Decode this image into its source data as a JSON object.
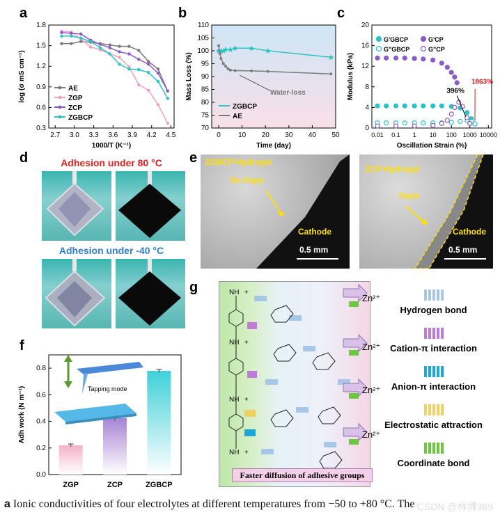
{
  "panels": {
    "a": "a",
    "b": "b",
    "c": "c",
    "d": "d",
    "e": "e",
    "f": "f",
    "g": "g"
  },
  "chart_data": [
    {
      "type": "line",
      "panel": "a",
      "xlabel": "1000/T (K⁻¹)",
      "ylabel": "log (σ mS cm⁻¹)",
      "xlim": [
        2.6,
        4.55
      ],
      "ylim": [
        0.3,
        1.8
      ],
      "xticks": [
        "2.7",
        "3.0",
        "3.3",
        "3.6",
        "3.9",
        "4.2",
        "4.5"
      ],
      "yticks": [
        "0.3",
        "0.6",
        "0.9",
        "1.2",
        "1.5",
        "1.8"
      ],
      "series": [
        {
          "name": "AE",
          "color": "#7a7a7a",
          "x": [
            2.8,
            2.95,
            3.1,
            3.25,
            3.4,
            3.55,
            3.7,
            3.85,
            4.0,
            4.15,
            4.3,
            4.45
          ],
          "y": [
            1.53,
            1.53,
            1.56,
            1.55,
            1.53,
            1.51,
            1.49,
            1.49,
            1.43,
            1.27,
            1.16,
            0.84
          ]
        },
        {
          "name": "ZGP",
          "color": "#f2a0b8",
          "x": [
            2.8,
            2.95,
            3.1,
            3.25,
            3.4,
            3.55,
            3.7,
            3.85,
            4.0,
            4.15,
            4.3,
            4.45
          ],
          "y": [
            1.71,
            1.7,
            1.6,
            1.48,
            1.44,
            1.38,
            1.33,
            1.19,
            0.93,
            0.85,
            0.64,
            0.37
          ]
        },
        {
          "name": "ZCP",
          "color": "#8a5cc7",
          "x": [
            2.8,
            2.95,
            3.1,
            3.25,
            3.4,
            3.55,
            3.7,
            3.85,
            4.0,
            4.15,
            4.3,
            4.45
          ],
          "y": [
            1.69,
            1.68,
            1.67,
            1.58,
            1.52,
            1.47,
            1.41,
            1.38,
            1.3,
            1.23,
            1.1,
            0.84
          ]
        },
        {
          "name": "ZGBCP",
          "color": "#2bc4c4",
          "x": [
            2.8,
            2.95,
            3.1,
            3.25,
            3.4,
            3.55,
            3.7,
            3.85,
            4.0,
            4.15,
            4.3,
            4.45
          ],
          "y": [
            1.64,
            1.64,
            1.61,
            1.56,
            1.47,
            1.38,
            1.23,
            1.16,
            1.15,
            1.11,
            0.98,
            0.73
          ]
        }
      ]
    },
    {
      "type": "line",
      "panel": "b",
      "xlabel": "Time (day)",
      "ylabel": "Mass Loss (%)",
      "xlim": [
        -3,
        50
      ],
      "ylim": [
        70,
        110
      ],
      "xticks": [
        "0",
        "10",
        "20",
        "30",
        "40",
        "50"
      ],
      "yticks": [
        "70",
        "75",
        "80",
        "85",
        "90",
        "95",
        "100",
        "105",
        "110"
      ],
      "annotation": "Water-loss",
      "series": [
        {
          "name": "ZGBCP",
          "color": "#2bc4c4",
          "x": [
            0,
            1,
            2,
            3,
            5,
            7,
            14,
            21,
            48
          ],
          "y": [
            100,
            100,
            100,
            100.5,
            100.5,
            101,
            101,
            100,
            97.5
          ]
        },
        {
          "name": "AE",
          "color": "#7a7a7a",
          "x": [
            0,
            0.5,
            1,
            2,
            3,
            4,
            5,
            7,
            14,
            21,
            48
          ],
          "y": [
            102,
            99,
            97,
            95,
            94,
            93,
            92.5,
            92.3,
            92.2,
            92,
            91
          ]
        }
      ]
    },
    {
      "type": "scatter",
      "panel": "c",
      "xlabel": "Oscillation Strain (%)",
      "ylabel": "Modulus (kPa)",
      "xscale": "log",
      "xlim": [
        0.005,
        15000
      ],
      "ylim": [
        0,
        20
      ],
      "xticks": [
        "0.01",
        "0.1",
        "1",
        "10",
        "100",
        "1000",
        "10000"
      ],
      "yticks": [
        "0",
        "4",
        "8",
        "12",
        "16",
        "20"
      ],
      "annotations": [
        "396%",
        "1863%"
      ],
      "series": [
        {
          "name": "G'GBCP",
          "color": "#2bc4c4",
          "fill": "filled",
          "x": [
            0.01,
            0.03,
            0.1,
            0.3,
            1,
            3,
            10,
            30,
            100,
            300,
            700,
            1200,
            1863
          ],
          "y": [
            4.3,
            4.3,
            4.3,
            4.3,
            4.3,
            4.3,
            4.3,
            4.3,
            4.2,
            3.9,
            3.0,
            1.8,
            0.8
          ]
        },
        {
          "name": "G\"GBCP",
          "color": "#2bc4c4",
          "fill": "open",
          "x": [
            0.01,
            0.03,
            0.1,
            0.3,
            1,
            3,
            10,
            30,
            100,
            300,
            700,
            1200,
            1863
          ],
          "y": [
            1.0,
            1.0,
            1.0,
            1.0,
            1.0,
            1.0,
            1.0,
            1.0,
            1.1,
            1.3,
            1.5,
            1.3,
            0.8
          ]
        },
        {
          "name": "G'CP",
          "color": "#8a5cc7",
          "fill": "filled",
          "x": [
            0.01,
            0.03,
            0.1,
            0.3,
            1,
            3,
            10,
            30,
            60,
            100,
            150,
            200
          ],
          "y": [
            13.6,
            13.6,
            13.6,
            13.6,
            13.5,
            13.4,
            13.2,
            12.6,
            11.8,
            10.8,
            9.9,
            8.8
          ]
        },
        {
          "name": "G\"CP",
          "color": "#8a5cc7",
          "fill": "open",
          "x": [
            0.01,
            0.1,
            1,
            10,
            30,
            60,
            100,
            150,
            250,
            396,
            700,
            1000
          ],
          "y": [
            0.4,
            0.4,
            0.4,
            0.5,
            0.9,
            1.5,
            2.7,
            4.0,
            5.0,
            4.2,
            2.0,
            0.9
          ]
        }
      ]
    },
    {
      "type": "bar",
      "panel": "f",
      "xlabel": "",
      "ylabel": "Adh work (N m⁻¹)",
      "ylim": [
        0.0,
        0.9
      ],
      "yticks": [
        "0.0",
        "0.2",
        "0.4",
        "0.6",
        "0.8"
      ],
      "categories": [
        "ZGP",
        "ZCP",
        "ZGBCP"
      ],
      "values": [
        0.22,
        0.425,
        0.78
      ],
      "errors": [
        0.01,
        0.02,
        0.012
      ],
      "colors": [
        "#f4b2c8",
        "#a784d4",
        "#3fd0d8"
      ],
      "annotation": "Tapping mode"
    }
  ],
  "panel_d": {
    "title_hot": "Adhesion under 80 °C",
    "title_cold": "Adhesion under -40 °C",
    "title_hot_color": "#e02020",
    "title_cold_color": "#2f7fd0"
  },
  "panel_e": {
    "left_label": "ZGBCP Hydrogel",
    "left_note": "No Gaps",
    "left_target": "Cathode",
    "left_scale": "0.5 mm",
    "right_label": "ZCP Hydrogel",
    "right_note": "Gaps",
    "right_target": "Cathode",
    "right_scale": "0.5 mm"
  },
  "panel_g": {
    "banner": "Faster diffusion of adhesive groups",
    "ion": "Zn²⁺",
    "legend": [
      {
        "label": "Hydrogen bond",
        "color": "#a8c6e8"
      },
      {
        "label": "Cation-π interaction",
        "color": "#c07ad8"
      },
      {
        "label": "Anion-π interaction",
        "color": "#1aa8d8"
      },
      {
        "label": "Electrostatic attraction",
        "color": "#f0d060"
      },
      {
        "label": "Coordinate bond",
        "color": "#6cc840"
      }
    ]
  },
  "caption": {
    "bold": "a",
    "text": " Ionic conductivities of four electrolytes at different temperatures from −50 to +80 °C. The"
  },
  "watermark": "CSDN @林博369"
}
